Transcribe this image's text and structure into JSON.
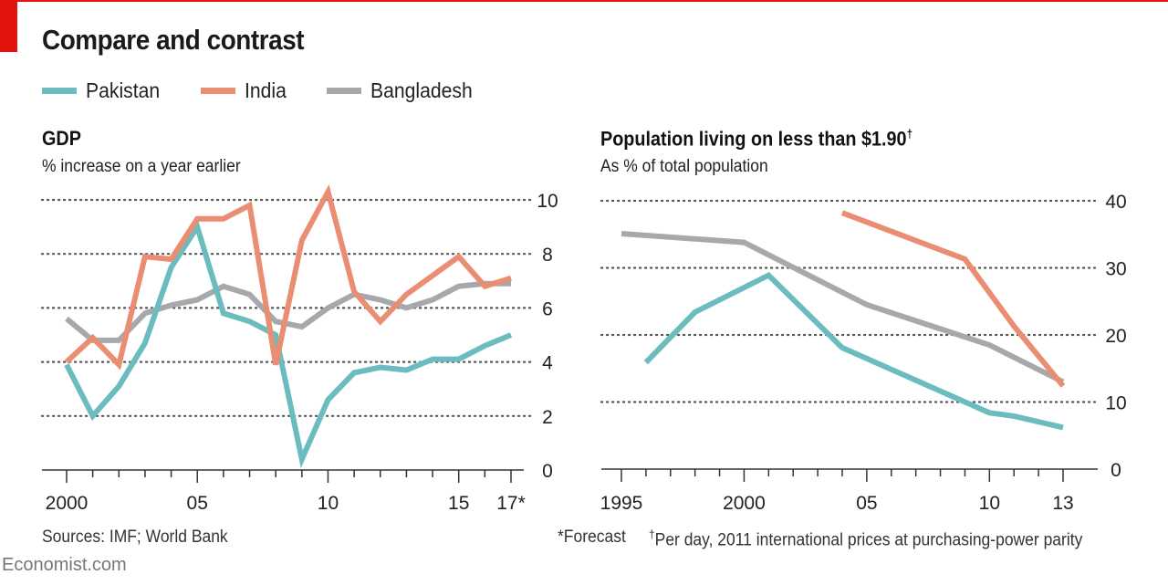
{
  "header": {
    "title": "Compare and contrast",
    "brand_color": "#e3120b"
  },
  "legend": [
    {
      "name": "Pakistan",
      "color": "#6bbcbf"
    },
    {
      "name": "India",
      "color": "#e98e72"
    },
    {
      "name": "Bangladesh",
      "color": "#a7a8ac"
    }
  ],
  "footer": {
    "sources": "Sources: IMF; World Bank",
    "forecast_note": "*Forecast",
    "dagger_symbol": "†",
    "dagger_note": "Per day, 2011 international prices at purchasing-power parity",
    "brand": "Economist.com"
  },
  "chart_data": [
    {
      "type": "line",
      "title": "GDP",
      "subtitle": "% increase on a year earlier",
      "xlabel": "",
      "ylabel": "% increase on a year earlier",
      "x": [
        2000,
        2001,
        2002,
        2003,
        2004,
        2005,
        2006,
        2007,
        2008,
        2009,
        2010,
        2011,
        2012,
        2013,
        2014,
        2015,
        2016,
        2017
      ],
      "xlim": [
        1999,
        2018
      ],
      "ylim": [
        0,
        10
      ],
      "yticks": [
        0,
        2,
        4,
        6,
        8,
        10
      ],
      "ytick_labels": [
        "0",
        "2",
        "4",
        "6",
        "8",
        "10"
      ],
      "xticks": [
        2000,
        2005,
        2010,
        2015,
        2017
      ],
      "xtick_labels": [
        "2000",
        "05",
        "10",
        "15",
        "17*"
      ],
      "grid": true,
      "y_axis_side": "right",
      "legend_position": "top-left",
      "series": [
        {
          "name": "Pakistan",
          "values": [
            3.9,
            2.0,
            3.1,
            4.7,
            7.5,
            9.0,
            5.8,
            5.5,
            5.0,
            0.4,
            2.6,
            3.6,
            3.8,
            3.7,
            4.1,
            4.1,
            4.6,
            5.0
          ]
        },
        {
          "name": "India",
          "values": [
            4.0,
            4.9,
            3.9,
            7.9,
            7.8,
            9.3,
            9.3,
            9.8,
            3.9,
            8.5,
            10.3,
            6.6,
            5.5,
            6.5,
            7.2,
            7.9,
            6.8,
            7.1
          ]
        },
        {
          "name": "Bangladesh",
          "values": [
            5.6,
            4.8,
            4.8,
            5.8,
            6.1,
            6.3,
            6.8,
            6.5,
            5.5,
            5.3,
            6.0,
            6.5,
            6.3,
            6.0,
            6.3,
            6.8,
            6.9,
            6.9
          ]
        }
      ]
    },
    {
      "type": "line",
      "title": "Population living on less than $1.90",
      "title_mark": "†",
      "subtitle": "As % of total population",
      "xlabel": "",
      "ylabel": "As % of total population",
      "xlim": [
        1994,
        2015
      ],
      "ylim": [
        0,
        40
      ],
      "yticks": [
        0,
        10,
        20,
        30,
        40
      ],
      "ytick_labels": [
        "0",
        "10",
        "20",
        "30",
        "40"
      ],
      "xticks": [
        1995,
        2000,
        2005,
        2010,
        2013
      ],
      "xtick_labels": [
        "1995",
        "2000",
        "05",
        "10",
        "13"
      ],
      "grid": true,
      "y_axis_side": "right",
      "series": [
        {
          "name": "Pakistan",
          "x": [
            1996,
            1998,
            2001,
            2004,
            2010,
            2011,
            2013
          ],
          "values": [
            15.9,
            23.4,
            28.9,
            18.1,
            8.4,
            7.9,
            6.2
          ]
        },
        {
          "name": "India",
          "x": [
            2004,
            2009,
            2011,
            2013
          ],
          "values": [
            38.2,
            31.3,
            21.3,
            12.4
          ]
        },
        {
          "name": "Bangladesh",
          "x": [
            1995,
            2000,
            2005,
            2010,
            2013
          ],
          "values": [
            35.1,
            33.8,
            24.5,
            18.5,
            13.0
          ]
        }
      ]
    }
  ]
}
